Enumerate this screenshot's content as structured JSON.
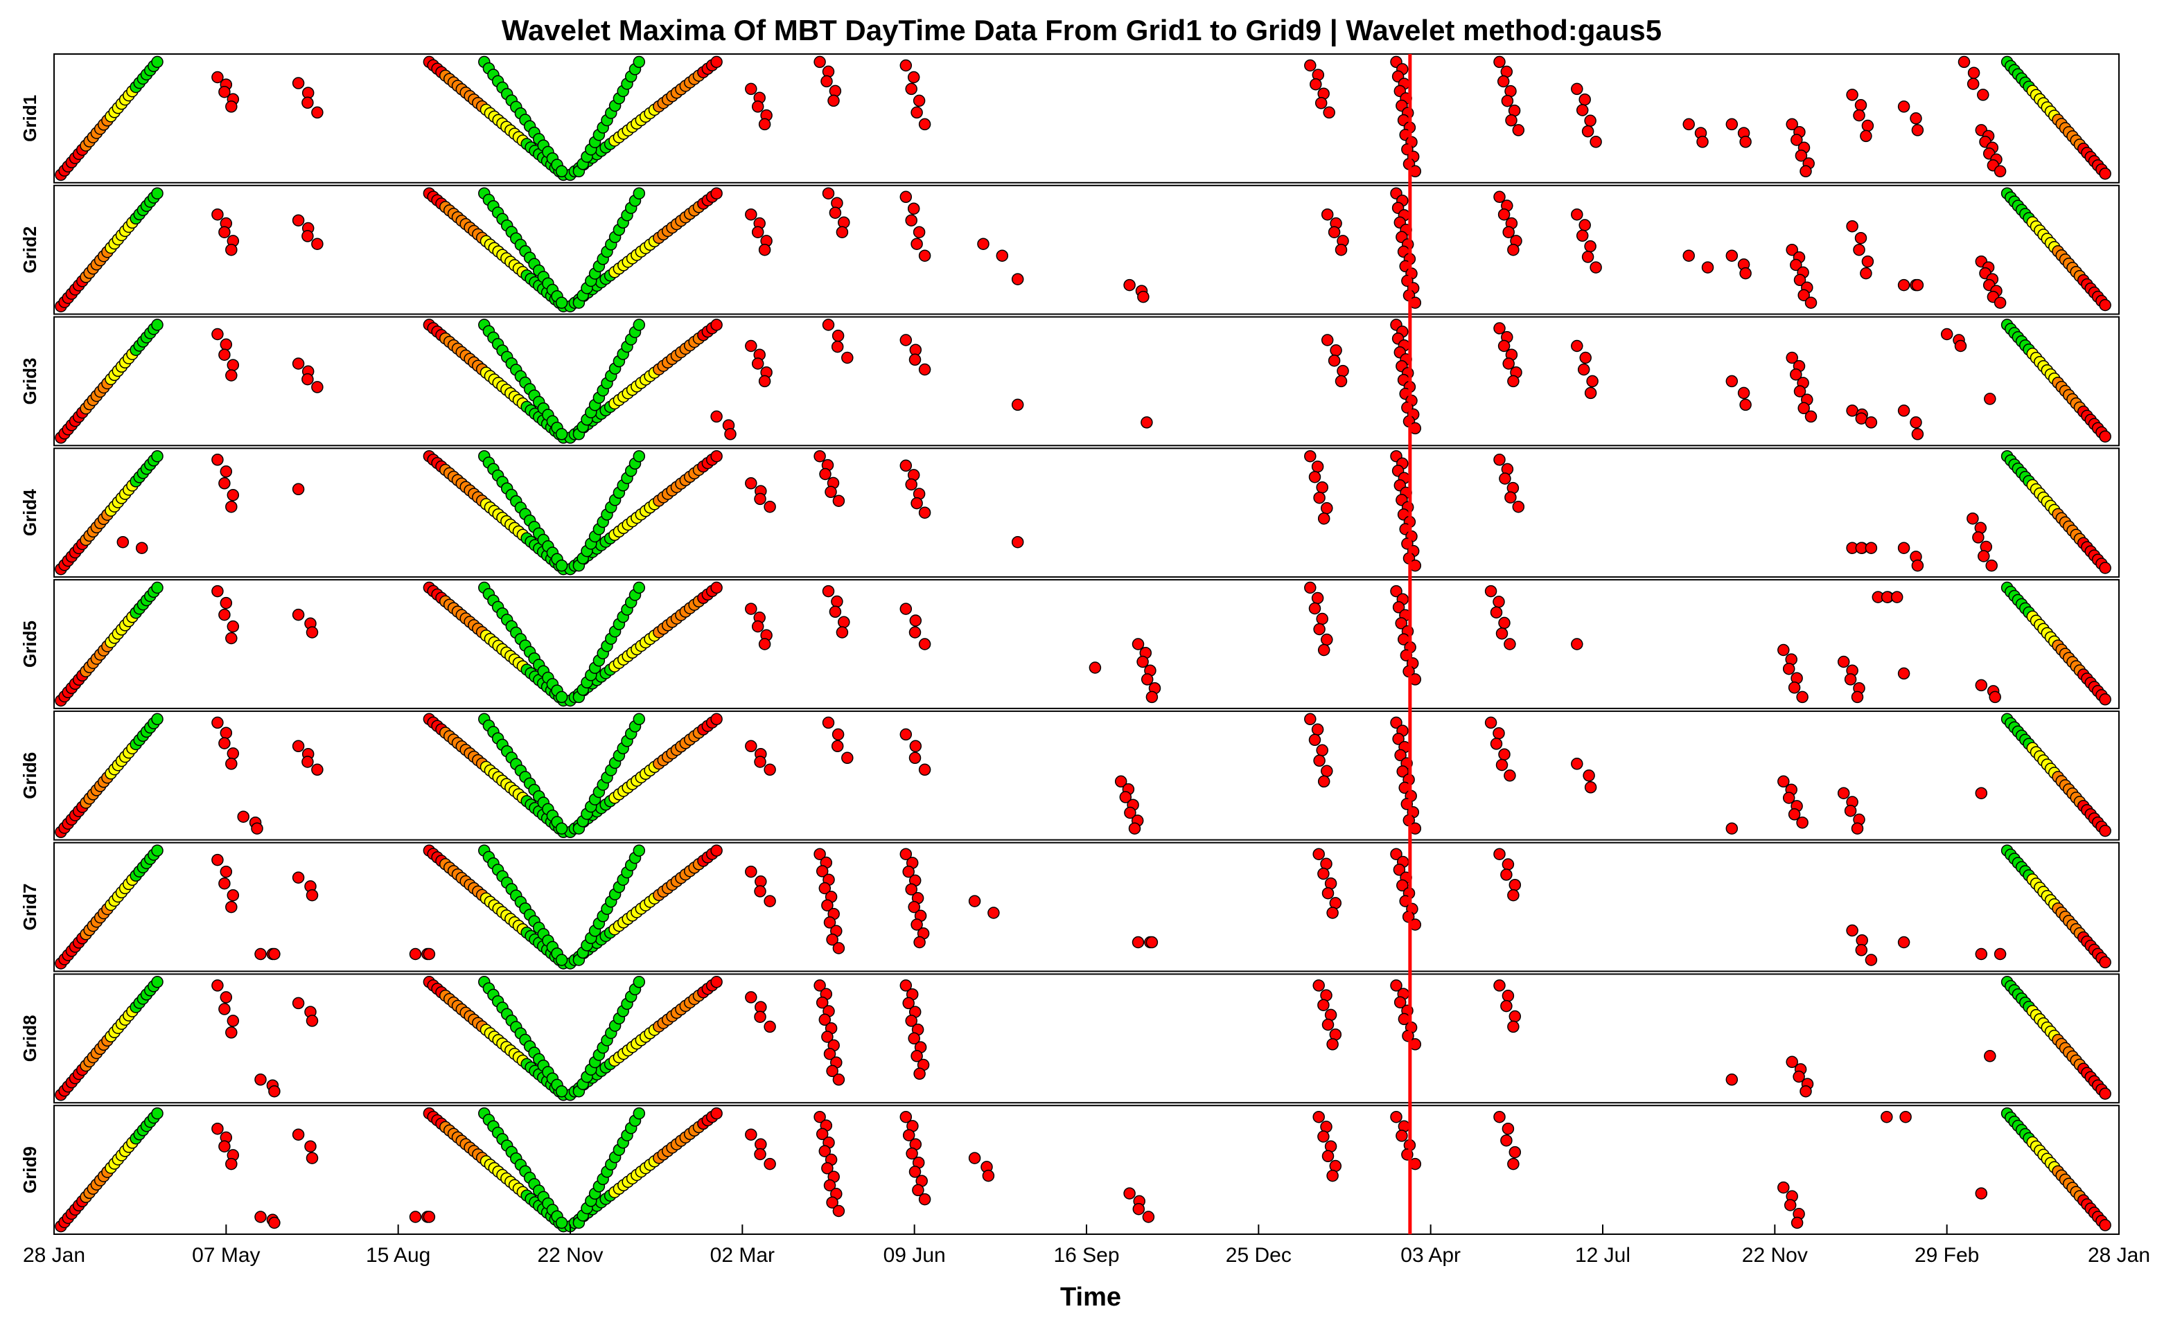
{
  "chart_data": {
    "type": "scatter",
    "title": "Wavelet Maxima Of MBT DayTime Data From Grid1 to Grid9 | Wavelet method:gaus5",
    "xlabel": "Time",
    "x_tick_labels": [
      "28 Jan",
      "07 May",
      "15 Aug",
      "22 Nov",
      "02 Mar",
      "09 Jun",
      "16 Sep",
      "25 Dec",
      "03 Apr",
      "12 Jul",
      "22 Nov",
      "29 Feb",
      "28 Jan"
    ],
    "x_unit": "tick index",
    "xlim": [
      0,
      12
    ],
    "ylim": [
      0,
      1
    ],
    "grid": false,
    "marker_edge_color": "#000000",
    "color_scale": {
      "low": "#ff0000",
      "mid_low": "#ff8000",
      "mid_high": "#ffff00",
      "high": "#00e000"
    },
    "event_line": {
      "x": 7.88,
      "color": "#ff0000"
    },
    "panels": [
      {
        "label": "Grid1"
      },
      {
        "label": "Grid2"
      },
      {
        "label": "Grid3"
      },
      {
        "label": "Grid4"
      },
      {
        "label": "Grid5"
      },
      {
        "label": "Grid6"
      },
      {
        "label": "Grid7"
      },
      {
        "label": "Grid8"
      },
      {
        "label": "Grid9"
      }
    ],
    "common_features": [
      {
        "name": "rising ramp",
        "x_start": 0.04,
        "x_end": 0.6,
        "y_start": 0.02,
        "y_end": 0.98,
        "color_start": 0,
        "color_end": 1,
        "n": 28
      },
      {
        "name": "V left arm",
        "x_start": 2.18,
        "x_end": 2.96,
        "y_start": 0.98,
        "y_end": 0.02,
        "color_start": 0.15,
        "color_end": 1,
        "n": 34
      },
      {
        "name": "V right arm",
        "x_start": 3.0,
        "x_end": 3.85,
        "y_start": 0.02,
        "y_end": 0.98,
        "color_start": 1,
        "color_end": 0.15,
        "n": 34
      },
      {
        "name": "V inner left",
        "x_start": 2.5,
        "x_end": 2.95,
        "y_start": 0.98,
        "y_end": 0.05,
        "color_start": 1,
        "color_end": 1,
        "n": 18
      },
      {
        "name": "V inner right",
        "x_start": 3.05,
        "x_end": 3.4,
        "y_start": 0.05,
        "y_end": 0.98,
        "color_start": 1,
        "color_end": 1,
        "n": 16
      },
      {
        "name": "falling ramp",
        "x_start": 11.35,
        "x_end": 11.92,
        "y_start": 0.98,
        "y_end": 0.03,
        "color_start": 1,
        "color_end": 0,
        "n": 28
      }
    ],
    "grid_features": [
      [
        {
          "x": 0.95,
          "y0": 0.85,
          "y1": 0.6,
          "n": 5
        },
        {
          "x": 1.42,
          "y0": 0.8,
          "y1": 0.55,
          "n": 4
        },
        {
          "x": 4.05,
          "y0": 0.75,
          "y1": 0.45,
          "n": 5
        },
        {
          "x": 4.45,
          "y0": 0.98,
          "y1": 0.65,
          "n": 5
        },
        {
          "x": 4.95,
          "y0": 0.95,
          "y1": 0.45,
          "n": 6
        },
        {
          "x": 7.3,
          "y0": 0.95,
          "y1": 0.55,
          "n": 6
        },
        {
          "x": 7.8,
          "y0": 0.98,
          "y1": 0.05,
          "n": 16
        },
        {
          "x": 8.4,
          "y0": 0.98,
          "y1": 0.4,
          "n": 8
        },
        {
          "x": 8.85,
          "y0": 0.75,
          "y1": 0.3,
          "n": 6
        },
        {
          "x": 9.5,
          "y0": 0.45,
          "y1": 0.3,
          "n": 3
        },
        {
          "x": 9.75,
          "y0": 0.45,
          "y1": 0.3,
          "n": 3
        },
        {
          "x": 10.1,
          "y0": 0.45,
          "y1": 0.05,
          "n": 7
        },
        {
          "x": 10.45,
          "y0": 0.7,
          "y1": 0.35,
          "n": 5
        },
        {
          "x": 10.75,
          "y0": 0.6,
          "y1": 0.4,
          "n": 3
        },
        {
          "x": 11.1,
          "y0": 0.98,
          "y1": 0.7,
          "n": 4
        },
        {
          "x": 11.2,
          "y0": 0.4,
          "y1": 0.05,
          "n": 8
        }
      ],
      [
        {
          "x": 0.95,
          "y0": 0.8,
          "y1": 0.5,
          "n": 5
        },
        {
          "x": 1.42,
          "y0": 0.75,
          "y1": 0.55,
          "n": 4
        },
        {
          "x": 4.05,
          "y0": 0.8,
          "y1": 0.5,
          "n": 5
        },
        {
          "x": 4.5,
          "y0": 0.98,
          "y1": 0.65,
          "n": 5
        },
        {
          "x": 4.95,
          "y0": 0.95,
          "y1": 0.45,
          "n": 6
        },
        {
          "x": 5.4,
          "y0": 0.55,
          "y1": 0.45,
          "n": 2
        },
        {
          "x": 5.6,
          "y0": 0.25,
          "y1": 0.25,
          "n": 1
        },
        {
          "x": 6.25,
          "y0": 0.2,
          "y1": 0.1,
          "n": 3
        },
        {
          "x": 7.4,
          "y0": 0.8,
          "y1": 0.5,
          "n": 5
        },
        {
          "x": 7.8,
          "y0": 0.98,
          "y1": 0.05,
          "n": 16
        },
        {
          "x": 8.4,
          "y0": 0.95,
          "y1": 0.5,
          "n": 7
        },
        {
          "x": 8.85,
          "y0": 0.8,
          "y1": 0.35,
          "n": 6
        },
        {
          "x": 9.5,
          "y0": 0.45,
          "y1": 0.35,
          "n": 2
        },
        {
          "x": 9.75,
          "y0": 0.45,
          "y1": 0.3,
          "n": 3
        },
        {
          "x": 10.1,
          "y0": 0.5,
          "y1": 0.05,
          "n": 8
        },
        {
          "x": 10.45,
          "y0": 0.7,
          "y1": 0.3,
          "n": 5
        },
        {
          "x": 10.75,
          "y0": 0.2,
          "y1": 0.2,
          "n": 3
        },
        {
          "x": 11.2,
          "y0": 0.4,
          "y1": 0.05,
          "n": 8
        }
      ],
      [
        {
          "x": 0.95,
          "y0": 0.9,
          "y1": 0.55,
          "n": 5
        },
        {
          "x": 1.42,
          "y0": 0.65,
          "y1": 0.45,
          "n": 4
        },
        {
          "x": 3.85,
          "y0": 0.2,
          "y1": 0.05,
          "n": 3
        },
        {
          "x": 4.05,
          "y0": 0.8,
          "y1": 0.5,
          "n": 5
        },
        {
          "x": 4.5,
          "y0": 0.98,
          "y1": 0.7,
          "n": 4
        },
        {
          "x": 4.95,
          "y0": 0.85,
          "y1": 0.6,
          "n": 4
        },
        {
          "x": 5.6,
          "y0": 0.3,
          "y1": 0.3,
          "n": 1
        },
        {
          "x": 6.35,
          "y0": 0.15,
          "y1": 0.15,
          "n": 1
        },
        {
          "x": 7.4,
          "y0": 0.85,
          "y1": 0.5,
          "n": 5
        },
        {
          "x": 7.8,
          "y0": 0.98,
          "y1": 0.1,
          "n": 16
        },
        {
          "x": 8.4,
          "y0": 0.95,
          "y1": 0.5,
          "n": 7
        },
        {
          "x": 8.85,
          "y0": 0.8,
          "y1": 0.4,
          "n": 5
        },
        {
          "x": 9.75,
          "y0": 0.5,
          "y1": 0.3,
          "n": 3
        },
        {
          "x": 10.1,
          "y0": 0.7,
          "y1": 0.2,
          "n": 8
        },
        {
          "x": 10.45,
          "y0": 0.25,
          "y1": 0.15,
          "n": 4
        },
        {
          "x": 10.75,
          "y0": 0.25,
          "y1": 0.05,
          "n": 3
        },
        {
          "x": 11.0,
          "y0": 0.9,
          "y1": 0.8,
          "n": 3
        },
        {
          "x": 11.25,
          "y0": 0.35,
          "y1": 0.35,
          "n": 1
        }
      ],
      [
        {
          "x": 0.95,
          "y0": 0.95,
          "y1": 0.55,
          "n": 5
        },
        {
          "x": 1.42,
          "y0": 0.7,
          "y1": 0.7,
          "n": 1
        },
        {
          "x": 0.4,
          "y0": 0.25,
          "y1": 0.2,
          "n": 2
        },
        {
          "x": 4.05,
          "y0": 0.75,
          "y1": 0.55,
          "n": 4
        },
        {
          "x": 4.45,
          "y0": 0.98,
          "y1": 0.6,
          "n": 6
        },
        {
          "x": 4.95,
          "y0": 0.9,
          "y1": 0.5,
          "n": 6
        },
        {
          "x": 5.6,
          "y0": 0.25,
          "y1": 0.25,
          "n": 1
        },
        {
          "x": 7.3,
          "y0": 0.98,
          "y1": 0.45,
          "n": 7
        },
        {
          "x": 7.8,
          "y0": 0.98,
          "y1": 0.05,
          "n": 16
        },
        {
          "x": 8.4,
          "y0": 0.95,
          "y1": 0.55,
          "n": 6
        },
        {
          "x": 10.45,
          "y0": 0.2,
          "y1": 0.2,
          "n": 4
        },
        {
          "x": 10.75,
          "y0": 0.2,
          "y1": 0.05,
          "n": 3
        },
        {
          "x": 11.15,
          "y0": 0.45,
          "y1": 0.05,
          "n": 6
        }
      ],
      [
        {
          "x": 0.95,
          "y0": 0.95,
          "y1": 0.55,
          "n": 5
        },
        {
          "x": 1.42,
          "y0": 0.75,
          "y1": 0.6,
          "n": 3
        },
        {
          "x": 4.05,
          "y0": 0.8,
          "y1": 0.5,
          "n": 5
        },
        {
          "x": 4.5,
          "y0": 0.95,
          "y1": 0.6,
          "n": 5
        },
        {
          "x": 4.95,
          "y0": 0.8,
          "y1": 0.5,
          "n": 4
        },
        {
          "x": 6.05,
          "y0": 0.3,
          "y1": 0.3,
          "n": 1
        },
        {
          "x": 6.3,
          "y0": 0.5,
          "y1": 0.05,
          "n": 7
        },
        {
          "x": 7.3,
          "y0": 0.98,
          "y1": 0.45,
          "n": 7
        },
        {
          "x": 7.8,
          "y0": 0.95,
          "y1": 0.2,
          "n": 12
        },
        {
          "x": 8.35,
          "y0": 0.95,
          "y1": 0.5,
          "n": 6
        },
        {
          "x": 8.85,
          "y0": 0.5,
          "y1": 0.5,
          "n": 1
        },
        {
          "x": 10.05,
          "y0": 0.45,
          "y1": 0.05,
          "n": 6
        },
        {
          "x": 10.4,
          "y0": 0.35,
          "y1": 0.05,
          "n": 5
        },
        {
          "x": 10.75,
          "y0": 0.25,
          "y1": 0.25,
          "n": 1
        },
        {
          "x": 10.6,
          "y0": 0.9,
          "y1": 0.9,
          "n": 4
        },
        {
          "x": 11.2,
          "y0": 0.15,
          "y1": 0.05,
          "n": 3
        }
      ],
      [
        {
          "x": 0.95,
          "y0": 0.95,
          "y1": 0.6,
          "n": 5
        },
        {
          "x": 1.1,
          "y0": 0.15,
          "y1": 0.05,
          "n": 3
        },
        {
          "x": 1.42,
          "y0": 0.75,
          "y1": 0.55,
          "n": 4
        },
        {
          "x": 4.05,
          "y0": 0.75,
          "y1": 0.55,
          "n": 4
        },
        {
          "x": 4.5,
          "y0": 0.95,
          "y1": 0.65,
          "n": 4
        },
        {
          "x": 4.95,
          "y0": 0.85,
          "y1": 0.55,
          "n": 4
        },
        {
          "x": 6.2,
          "y0": 0.45,
          "y1": 0.05,
          "n": 7
        },
        {
          "x": 7.3,
          "y0": 0.98,
          "y1": 0.45,
          "n": 7
        },
        {
          "x": 7.8,
          "y0": 0.95,
          "y1": 0.05,
          "n": 14
        },
        {
          "x": 8.35,
          "y0": 0.95,
          "y1": 0.5,
          "n": 6
        },
        {
          "x": 8.85,
          "y0": 0.6,
          "y1": 0.4,
          "n": 3
        },
        {
          "x": 9.75,
          "y0": 0.05,
          "y1": 0.05,
          "n": 1
        },
        {
          "x": 10.05,
          "y0": 0.45,
          "y1": 0.1,
          "n": 6
        },
        {
          "x": 10.4,
          "y0": 0.35,
          "y1": 0.05,
          "n": 5
        },
        {
          "x": 11.2,
          "y0": 0.35,
          "y1": 0.35,
          "n": 1
        }
      ],
      [
        {
          "x": 0.95,
          "y0": 0.9,
          "y1": 0.5,
          "n": 5
        },
        {
          "x": 1.2,
          "y0": 0.1,
          "y1": 0.1,
          "n": 3
        },
        {
          "x": 1.42,
          "y0": 0.75,
          "y1": 0.6,
          "n": 3
        },
        {
          "x": 2.1,
          "y0": 0.1,
          "y1": 0.1,
          "n": 3
        },
        {
          "x": 4.05,
          "y0": 0.8,
          "y1": 0.55,
          "n": 4
        },
        {
          "x": 4.45,
          "y0": 0.95,
          "y1": 0.15,
          "n": 12
        },
        {
          "x": 4.95,
          "y0": 0.95,
          "y1": 0.2,
          "n": 11
        },
        {
          "x": 5.35,
          "y0": 0.55,
          "y1": 0.45,
          "n": 2
        },
        {
          "x": 6.3,
          "y0": 0.2,
          "y1": 0.2,
          "n": 3
        },
        {
          "x": 7.35,
          "y0": 0.95,
          "y1": 0.45,
          "n": 7
        },
        {
          "x": 7.8,
          "y0": 0.95,
          "y1": 0.35,
          "n": 10
        },
        {
          "x": 8.4,
          "y0": 0.95,
          "y1": 0.6,
          "n": 5
        },
        {
          "x": 10.45,
          "y0": 0.3,
          "y1": 0.05,
          "n": 4
        },
        {
          "x": 10.75,
          "y0": 0.2,
          "y1": 0.2,
          "n": 1
        },
        {
          "x": 11.2,
          "y0": 0.1,
          "y1": 0.1,
          "n": 2
        }
      ],
      [
        {
          "x": 0.95,
          "y0": 0.95,
          "y1": 0.55,
          "n": 5
        },
        {
          "x": 1.2,
          "y0": 0.15,
          "y1": 0.05,
          "n": 3
        },
        {
          "x": 1.42,
          "y0": 0.8,
          "y1": 0.65,
          "n": 3
        },
        {
          "x": 4.05,
          "y0": 0.85,
          "y1": 0.6,
          "n": 4
        },
        {
          "x": 4.45,
          "y0": 0.95,
          "y1": 0.15,
          "n": 12
        },
        {
          "x": 4.95,
          "y0": 0.95,
          "y1": 0.2,
          "n": 11
        },
        {
          "x": 7.35,
          "y0": 0.95,
          "y1": 0.45,
          "n": 7
        },
        {
          "x": 7.8,
          "y0": 0.95,
          "y1": 0.45,
          "n": 8
        },
        {
          "x": 8.4,
          "y0": 0.95,
          "y1": 0.6,
          "n": 5
        },
        {
          "x": 9.75,
          "y0": 0.15,
          "y1": 0.15,
          "n": 1
        },
        {
          "x": 10.1,
          "y0": 0.3,
          "y1": 0.05,
          "n": 5
        },
        {
          "x": 11.25,
          "y0": 0.35,
          "y1": 0.35,
          "n": 1
        }
      ],
      [
        {
          "x": 0.95,
          "y0": 0.85,
          "y1": 0.55,
          "n": 5
        },
        {
          "x": 1.2,
          "y0": 0.1,
          "y1": 0.05,
          "n": 3
        },
        {
          "x": 1.42,
          "y0": 0.8,
          "y1": 0.6,
          "n": 3
        },
        {
          "x": 2.1,
          "y0": 0.1,
          "y1": 0.1,
          "n": 3
        },
        {
          "x": 4.05,
          "y0": 0.8,
          "y1": 0.55,
          "n": 4
        },
        {
          "x": 4.45,
          "y0": 0.95,
          "y1": 0.15,
          "n": 12
        },
        {
          "x": 4.95,
          "y0": 0.95,
          "y1": 0.25,
          "n": 10
        },
        {
          "x": 5.35,
          "y0": 0.6,
          "y1": 0.45,
          "n": 3
        },
        {
          "x": 6.25,
          "y0": 0.3,
          "y1": 0.1,
          "n": 4
        },
        {
          "x": 7.35,
          "y0": 0.95,
          "y1": 0.45,
          "n": 7
        },
        {
          "x": 7.8,
          "y0": 0.95,
          "y1": 0.55,
          "n": 6
        },
        {
          "x": 8.4,
          "y0": 0.95,
          "y1": 0.55,
          "n": 5
        },
        {
          "x": 10.05,
          "y0": 0.35,
          "y1": 0.05,
          "n": 5
        },
        {
          "x": 10.65,
          "y0": 0.95,
          "y1": 0.95,
          "n": 2
        },
        {
          "x": 11.2,
          "y0": 0.3,
          "y1": 0.3,
          "n": 1
        }
      ]
    ]
  }
}
